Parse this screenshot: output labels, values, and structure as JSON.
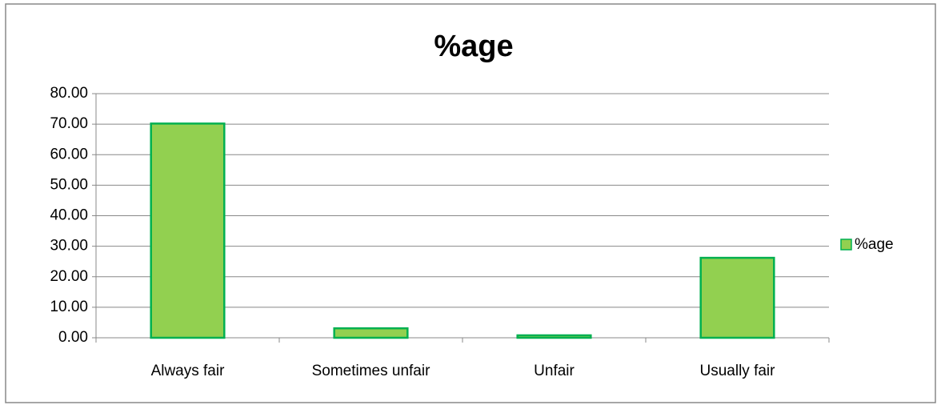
{
  "chart_data": {
    "type": "bar",
    "title": "%age",
    "categories": [
      "Always fair",
      "Sometimes unfair",
      "Unfair",
      "Usually fair"
    ],
    "series": [
      {
        "name": "%age",
        "color": "#92d050",
        "values": [
          70.2,
          3.1,
          0.8,
          26.2
        ]
      }
    ],
    "ylim": [
      0,
      80
    ],
    "yticks": [
      {
        "value": 0,
        "label": "0.00"
      },
      {
        "value": 10,
        "label": "10.00"
      },
      {
        "value": 20,
        "label": "20.00"
      },
      {
        "value": 30,
        "label": "30.00"
      },
      {
        "value": 40,
        "label": "40.00"
      },
      {
        "value": 50,
        "label": "50.00"
      },
      {
        "value": 60,
        "label": "60.00"
      },
      {
        "value": 70,
        "label": "70.00"
      },
      {
        "value": 80,
        "label": "80.00"
      }
    ],
    "grid": true,
    "legend": "right"
  }
}
